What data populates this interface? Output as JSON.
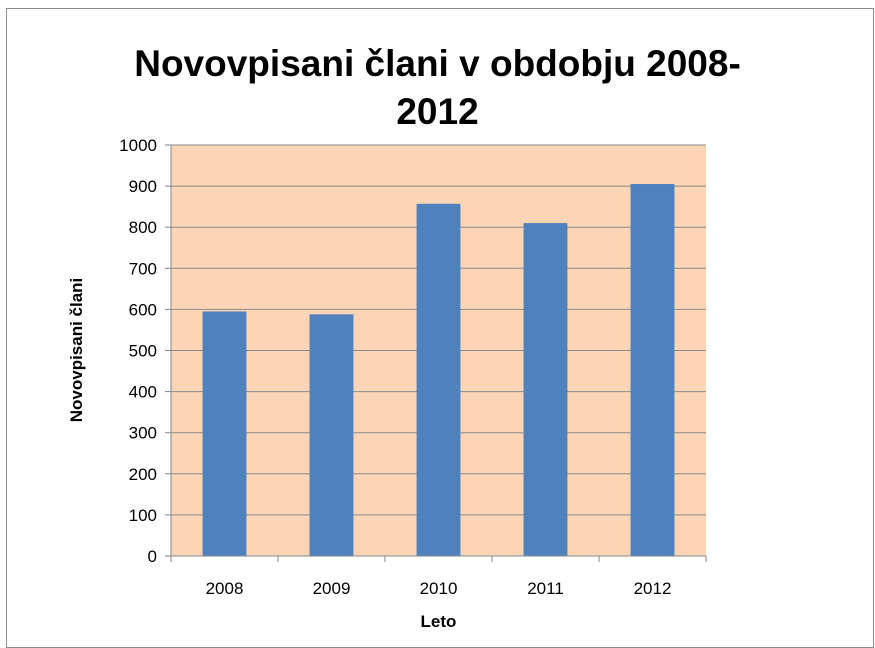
{
  "chart_data": {
    "type": "bar",
    "title_line1": "Novovpisani člani v obdobju 2008-",
    "title_line2": "2012",
    "xlabel": "Leto",
    "ylabel": "Novovpisani člani",
    "categories": [
      "2008",
      "2009",
      "2010",
      "2011",
      "2012"
    ],
    "values": [
      595,
      588,
      857,
      810,
      905
    ],
    "ylim": [
      0,
      1000
    ],
    "yticks": [
      "0",
      "100",
      "200",
      "300",
      "400",
      "500",
      "600",
      "700",
      "800",
      "900",
      "1000"
    ],
    "grid": true,
    "legend": "none"
  },
  "colors": {
    "plot_background": "#fbd5b5",
    "bar": "#4f81bd",
    "gridline": "#8a8a8a",
    "axis": "#868686",
    "text": "#000000"
  }
}
